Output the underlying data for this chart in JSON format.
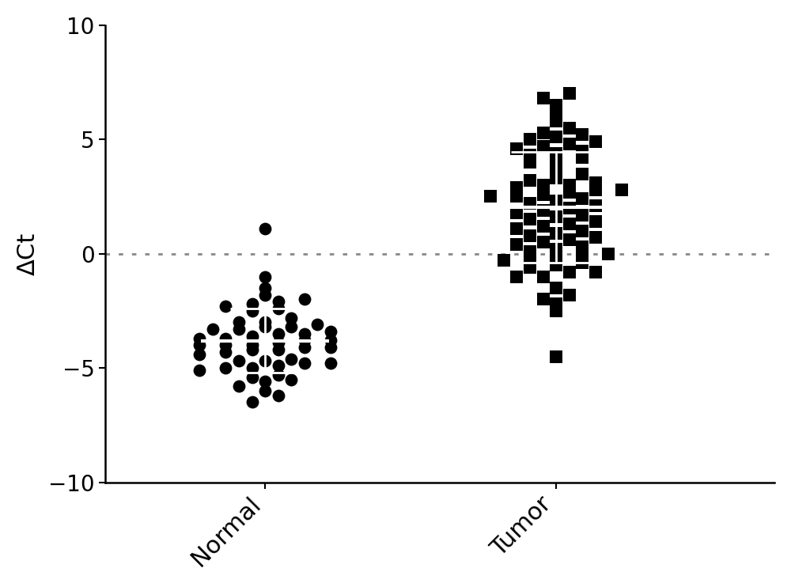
{
  "ylabel": "ΔCt",
  "ylim": [
    -10,
    10
  ],
  "yticks": [
    -10,
    -5,
    0,
    5,
    10
  ],
  "groups": [
    "Normal",
    "Tumor"
  ],
  "normal_data": [
    1.1,
    -1.0,
    -1.5,
    -2.0,
    -2.2,
    -2.5,
    -2.3,
    -2.1,
    -1.8,
    -2.4,
    -3.0,
    -3.1,
    -3.2,
    -3.3,
    -3.4,
    -3.5,
    -3.5,
    -3.6,
    -3.0,
    -3.2,
    -2.8,
    -3.7,
    -3.3,
    -3.8,
    -4.0,
    -4.1,
    -4.2,
    -4.0,
    -3.9,
    -3.7,
    -4.3,
    -4.4,
    -4.0,
    -3.8,
    -4.2,
    -4.1,
    -4.7,
    -4.8,
    -4.9,
    -5.0,
    -4.6,
    -4.7,
    -4.8,
    -5.1,
    -5.0,
    -5.3,
    -5.5,
    -5.8,
    -6.0,
    -5.6,
    -5.4,
    -6.2,
    -6.5
  ],
  "tumor_data": [
    -4.5,
    -2.5,
    -2.0,
    -1.5,
    -1.8,
    -2.2,
    -1.0,
    -0.8,
    -0.5,
    -0.3,
    -0.2,
    -0.8,
    -0.1,
    0.0,
    0.2,
    -0.6,
    -1.0,
    -0.4,
    0.1,
    -0.2,
    0.3,
    0.5,
    0.8,
    1.0,
    1.2,
    1.5,
    1.3,
    1.1,
    0.7,
    0.9,
    1.6,
    1.8,
    2.0,
    0.6,
    1.4,
    1.7,
    0.4,
    1.9,
    2.2,
    2.5,
    2.8,
    3.0,
    2.7,
    2.6,
    2.4,
    2.3,
    3.2,
    3.5,
    3.8,
    3.1,
    2.9,
    2.1,
    3.3,
    2.5,
    3.0,
    2.8,
    4.0,
    4.2,
    4.5,
    4.3,
    4.1,
    4.8,
    4.6,
    4.4,
    4.7,
    4.9,
    5.0,
    5.2,
    5.5,
    5.8,
    5.3,
    5.1,
    6.0,
    6.5,
    6.8,
    7.0
  ],
  "marker_color": "#000000",
  "background_color": "#ffffff",
  "dotted_line_color": "#888888",
  "ylabel_fontsize": 22,
  "tick_fontsize": 20,
  "xlabel_fontsize": 22
}
